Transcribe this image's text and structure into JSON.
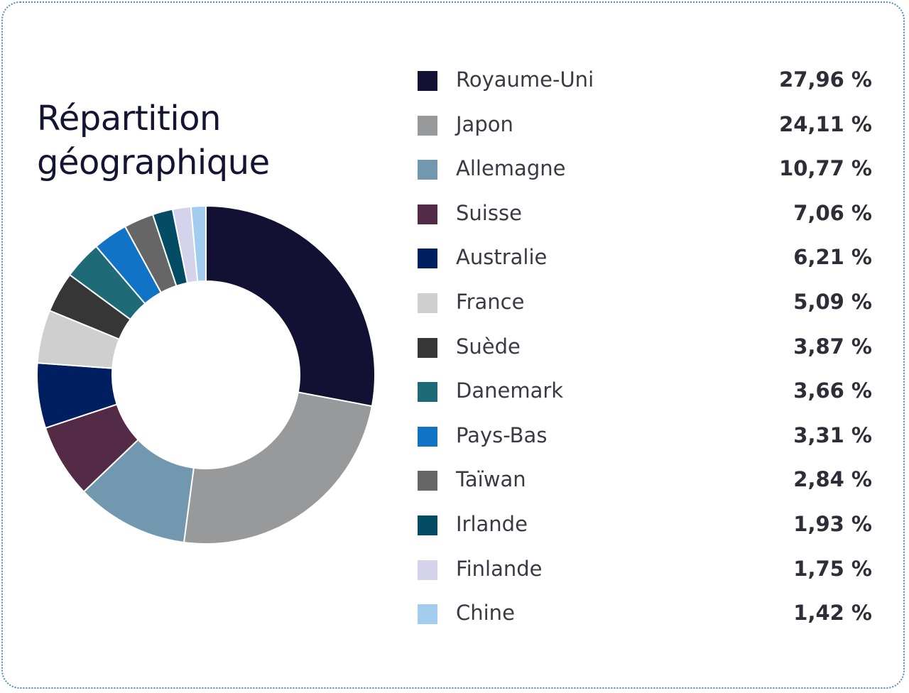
{
  "title_lines": [
    "Répartition",
    "géographique"
  ],
  "chart_data": {
    "type": "pie",
    "variant": "donut",
    "title": "Répartition géographique",
    "legend_position": "right",
    "start_angle": "top",
    "direction": "clockwise",
    "slices": [
      {
        "label": "Royaume-Uni",
        "value": 27.96,
        "display": "27,96 %",
        "color": "#121133"
      },
      {
        "label": "Japon",
        "value": 24.11,
        "display": "24,11 %",
        "color": "#98999b"
      },
      {
        "label": "Allemagne",
        "value": 10.77,
        "display": "10,77 %",
        "color": "#7198ae"
      },
      {
        "label": "Suisse",
        "value": 7.06,
        "display": "7,06 %",
        "color": "#532b47"
      },
      {
        "label": "Australie",
        "value": 6.21,
        "display": "6,21 %",
        "color": "#001f61"
      },
      {
        "label": "France",
        "value": 5.09,
        "display": "5,09 %",
        "color": "#cfcfcf"
      },
      {
        "label": "Suède",
        "value": 3.87,
        "display": "3,87 %",
        "color": "#363636"
      },
      {
        "label": "Danemark",
        "value": 3.66,
        "display": "3,66 %",
        "color": "#1e6b77"
      },
      {
        "label": "Pays-Bas",
        "value": 3.31,
        "display": "3,31 %",
        "color": "#1173c6"
      },
      {
        "label": "Taïwan",
        "value": 2.84,
        "display": "2,84 %",
        "color": "#666666"
      },
      {
        "label": "Irlande",
        "value": 1.93,
        "display": "1,93 %",
        "color": "#034c64"
      },
      {
        "label": "Finlande",
        "value": 1.75,
        "display": "1,75 %",
        "color": "#d5d3ec"
      },
      {
        "label": "Chine",
        "value": 1.42,
        "display": "1,42 %",
        "color": "#a2cdee"
      }
    ]
  }
}
